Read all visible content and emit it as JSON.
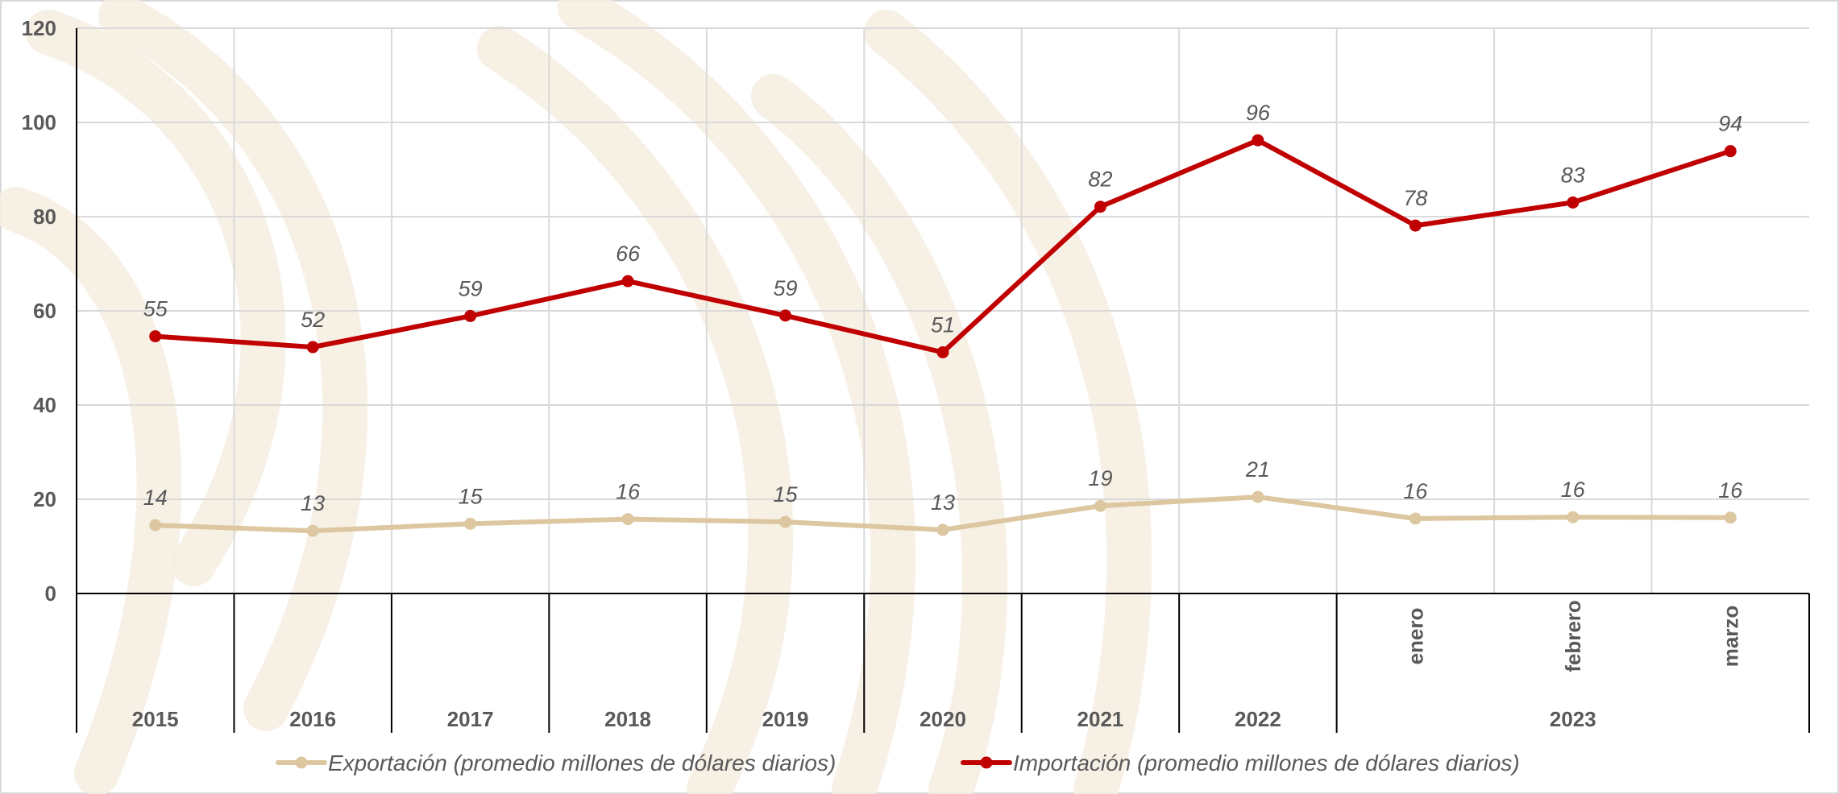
{
  "colors": {
    "export": "#dcc7a0",
    "import": "#c00000",
    "grid": "#d9d9d9",
    "axis": "#000000",
    "text": "#595959",
    "watermark": "#f6ede1"
  },
  "chart_data": {
    "type": "line",
    "title": "",
    "xlabel": "",
    "ylabel": "",
    "ylim": [
      0,
      120
    ],
    "yticks": [
      0,
      20,
      40,
      60,
      80,
      100,
      120
    ],
    "grid": true,
    "legend_position": "bottom",
    "categories": [
      "2015",
      "2016",
      "2017",
      "2018",
      "2019",
      "2020",
      "2021",
      "2022",
      "enero",
      "febrero",
      "marzo"
    ],
    "category_groups": [
      {
        "label": "2015",
        "categories": [
          "2015"
        ]
      },
      {
        "label": "2016",
        "categories": [
          "2016"
        ]
      },
      {
        "label": "2017",
        "categories": [
          "2017"
        ]
      },
      {
        "label": "2018",
        "categories": [
          "2018"
        ]
      },
      {
        "label": "2019",
        "categories": [
          "2019"
        ]
      },
      {
        "label": "2020",
        "categories": [
          "2020"
        ]
      },
      {
        "label": "2021",
        "categories": [
          "2021"
        ]
      },
      {
        "label": "2022",
        "categories": [
          "2022"
        ]
      },
      {
        "label": "2023",
        "categories": [
          "enero",
          "febrero",
          "marzo"
        ]
      }
    ],
    "series": [
      {
        "name": "Exportación (promedio millones de dólares diarios)",
        "values": [
          14.5,
          13.3,
          14.8,
          15.8,
          15.2,
          13.5,
          18.6,
          20.5,
          15.9,
          16.2,
          16.1
        ],
        "labels": [
          "14",
          "13",
          "15",
          "16",
          "15",
          "13",
          "19",
          "21",
          "16",
          "16",
          "16"
        ]
      },
      {
        "name": "Importación (promedio millones de dólares diarios)",
        "values": [
          54.6,
          52.3,
          58.9,
          66.3,
          59.0,
          51.2,
          82.1,
          96.2,
          78.1,
          83.0,
          93.9
        ],
        "labels": [
          "55",
          "52",
          "59",
          "66",
          "59",
          "51",
          "82",
          "96",
          "78",
          "83",
          "94"
        ]
      }
    ]
  }
}
